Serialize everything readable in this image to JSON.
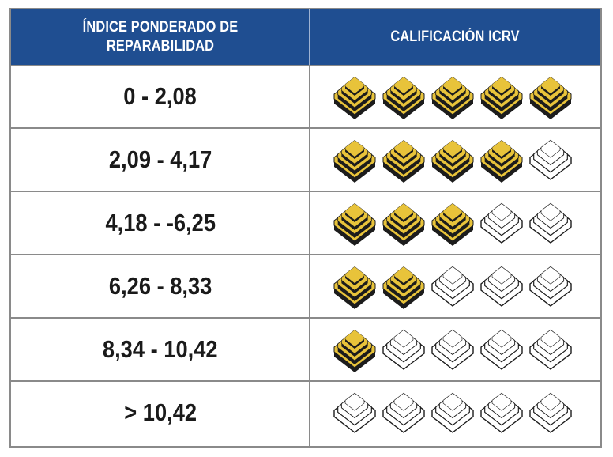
{
  "table": {
    "header": {
      "col1": "ÍNDICE PONDERADO DE REPARABILIDAD",
      "col2": "CALIFICACIÓN ICRV"
    },
    "max_rating": 5,
    "colors": {
      "header_bg": "#1f4e91",
      "filled_primary": "#e8c33a",
      "filled_shadow": "#1c1c1c",
      "border": "#8a8a8a"
    },
    "rows": [
      {
        "range": "0 - 2,08",
        "rating": 5
      },
      {
        "range": "2,09 - 4,17",
        "rating": 4
      },
      {
        "range": "4,18 - -6,25",
        "rating": 3
      },
      {
        "range": "6,26 - 8,33",
        "rating": 2
      },
      {
        "range": "8,34 - 10,42",
        "rating": 1
      },
      {
        "range": "> 10,42",
        "rating": 0
      }
    ]
  }
}
